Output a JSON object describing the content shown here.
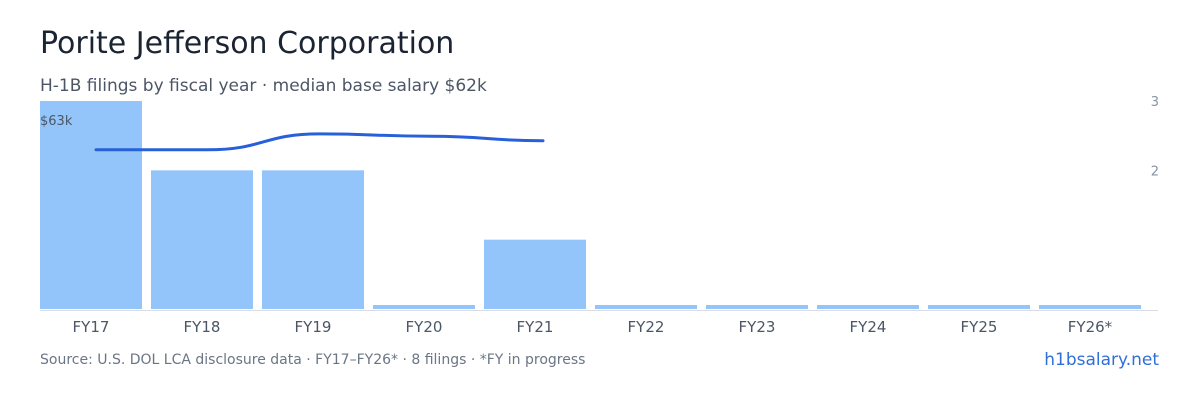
{
  "header": {
    "title": "Porite Jefferson Corporation",
    "subtitle": "H-1B filings by fiscal year · median base salary $62k"
  },
  "footer": {
    "source": "Source: U.S. DOL LCA disclosure data · FY17–FY26* · 8 filings · *FY in progress",
    "brand": "h1bsalary.net"
  },
  "chart_data": {
    "type": "bar",
    "categories": [
      "FY17",
      "FY18",
      "FY19",
      "FY20",
      "FY21",
      "FY22",
      "FY23",
      "FY24",
      "FY25",
      "FY26*"
    ],
    "values": [
      3,
      2,
      2,
      0,
      1,
      0,
      0,
      0,
      0,
      0
    ],
    "right_axis": {
      "ticks": [
        "3",
        "2"
      ],
      "range": [
        0,
        3
      ]
    },
    "salary_line": {
      "label": "$63k",
      "categories": [
        "FY17",
        "FY18",
        "FY19",
        "FY20",
        "FY21"
      ],
      "values": [
        62.2,
        62.2,
        62.9,
        62.8,
        62.6
      ],
      "range": [
        58,
        64
      ]
    },
    "colors": {
      "bar": "#93c5fb",
      "line": "#2760d8",
      "axis": "#d9dde3",
      "tick_text": "#4c5666",
      "axis_text": "#8a93a3"
    },
    "grid": false,
    "legend": "none"
  }
}
